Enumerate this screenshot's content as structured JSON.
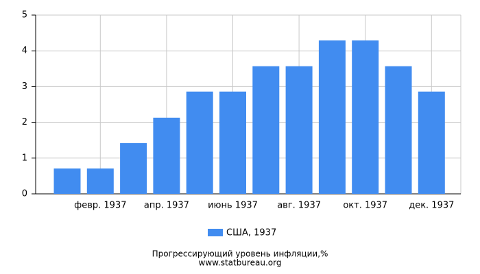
{
  "chart_data": {
    "type": "bar",
    "title": "Прогрессирующий уровень инфляции,%",
    "source": "www.statbureau.org",
    "categories": [
      null,
      "февр. 1937",
      null,
      "апр. 1937",
      null,
      "июнь 1937",
      null,
      "авг. 1937",
      null,
      "окт. 1937",
      null,
      "дек. 1937"
    ],
    "series": [
      {
        "name": "США, 1937",
        "color": "#418cf0",
        "values": [
          0.71,
          0.71,
          1.42,
          2.13,
          2.86,
          2.86,
          3.57,
          3.57,
          4.29,
          4.29,
          3.57,
          2.86
        ]
      }
    ],
    "ylim": [
      0,
      5
    ],
    "yticks": [
      0,
      1,
      2,
      3,
      4,
      5
    ],
    "grid": true
  }
}
